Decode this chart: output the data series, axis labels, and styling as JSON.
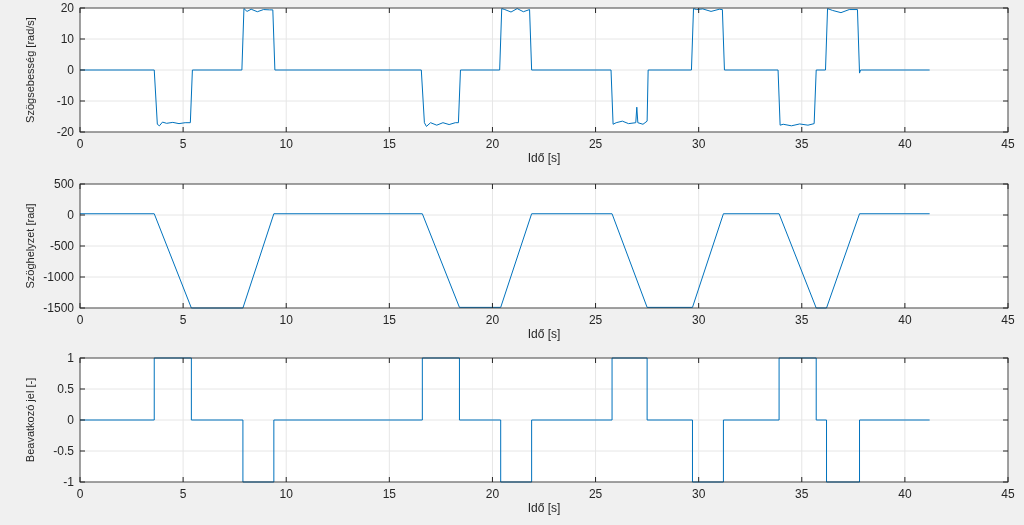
{
  "chart_data": [
    {
      "type": "line",
      "xlabel": "Idő [s]",
      "ylabel": "Szögsebesség [rad/s]",
      "xlim": [
        0,
        45
      ],
      "xticks": [
        0,
        5,
        10,
        15,
        20,
        25,
        30,
        35,
        40,
        45
      ],
      "ylim": [
        -20,
        20
      ],
      "yticks": [
        -20,
        -10,
        0,
        10,
        20
      ],
      "grid": true,
      "series": [
        {
          "color": "#0072bd",
          "x": [
            0,
            3.6,
            3.75,
            3.85,
            4.0,
            4.2,
            4.5,
            4.8,
            5.1,
            5.35,
            5.45,
            7.85,
            7.95,
            8.1,
            8.3,
            8.6,
            8.9,
            9.2,
            9.35,
            9.45,
            16.55,
            16.7,
            16.8,
            17.0,
            17.3,
            17.6,
            17.9,
            18.2,
            18.35,
            18.45,
            20.35,
            20.45,
            20.6,
            20.9,
            21.2,
            21.5,
            21.8,
            21.9,
            25.75,
            25.85,
            26.0,
            26.3,
            26.6,
            26.95,
            27.0,
            27.05,
            27.3,
            27.5,
            27.55,
            29.65,
            29.75,
            29.9,
            30.2,
            30.6,
            31.0,
            31.15,
            31.25,
            33.85,
            33.95,
            34.1,
            34.5,
            34.9,
            35.3,
            35.6,
            35.7,
            36.15,
            36.25,
            36.5,
            36.9,
            37.3,
            37.7,
            37.8,
            37.85,
            41.2
          ],
          "values": [
            0,
            0,
            -17.5,
            -18,
            -16.8,
            -17.2,
            -16.9,
            -17.3,
            -17,
            -17,
            0,
            0,
            19.8,
            18.9,
            19.6,
            18.8,
            19.5,
            19.4,
            19.4,
            0,
            0,
            -17,
            -18.2,
            -17,
            -17.8,
            -17,
            -17.6,
            -17,
            -17,
            0,
            0,
            19.8,
            19.5,
            18.7,
            19.8,
            18.8,
            19.5,
            0,
            0,
            -17.5,
            -17,
            -16.5,
            -17.3,
            -17,
            -12,
            -17,
            -17.5,
            -16.5,
            0,
            0,
            19.8,
            19.5,
            19.7,
            18.9,
            19.6,
            19.5,
            0,
            0,
            -17.8,
            -17.5,
            -18,
            -17.4,
            -17.8,
            -17.3,
            0,
            0,
            19.8,
            19.2,
            18.5,
            19.5,
            19.5,
            -1,
            0,
            0
          ]
        }
      ]
    },
    {
      "type": "line",
      "xlabel": "Idő [s]",
      "ylabel": "Szöghelyzet [rad]",
      "xlim": [
        0,
        45
      ],
      "xticks": [
        0,
        5,
        10,
        15,
        20,
        25,
        30,
        35,
        40,
        45
      ],
      "ylim": [
        -1500,
        500
      ],
      "yticks": [
        -1500,
        -1000,
        -500,
        0,
        500
      ],
      "grid": true,
      "series": [
        {
          "color": "#0072bd",
          "x": [
            0,
            3.6,
            5.4,
            7.9,
            9.4,
            16.6,
            18.4,
            20.4,
            21.9,
            25.8,
            27.5,
            29.7,
            31.2,
            33.9,
            35.7,
            36.2,
            37.8,
            41.2
          ],
          "values": [
            20,
            20,
            -1500,
            -1500,
            20,
            20,
            -1490,
            -1490,
            20,
            20,
            -1490,
            -1490,
            20,
            20,
            -1500,
            -1500,
            20,
            20
          ]
        }
      ]
    },
    {
      "type": "line",
      "xlabel": "Idő [s]",
      "ylabel": "Beavatkozó jel [-]",
      "xlim": [
        0,
        45
      ],
      "xticks": [
        0,
        5,
        10,
        15,
        20,
        25,
        30,
        35,
        40,
        45
      ],
      "ylim": [
        -1,
        1
      ],
      "yticks": [
        -1,
        -0.5,
        0,
        0.5,
        1
      ],
      "grid": true,
      "series": [
        {
          "color": "#0072bd",
          "x": [
            0,
            3.6,
            3.6,
            5.4,
            5.4,
            7.9,
            7.9,
            9.4,
            9.4,
            16.6,
            16.6,
            18.4,
            18.4,
            20.4,
            20.4,
            21.9,
            21.9,
            25.8,
            25.8,
            27.5,
            27.5,
            29.7,
            29.7,
            31.2,
            31.2,
            33.9,
            33.9,
            35.7,
            35.7,
            36.2,
            36.2,
            37.8,
            37.8,
            41.2
          ],
          "values": [
            0,
            0,
            1,
            1,
            0,
            0,
            -1,
            -1,
            0,
            0,
            1,
            1,
            0,
            0,
            -1,
            -1,
            0,
            0,
            1,
            1,
            0,
            0,
            -1,
            -1,
            0,
            0,
            1,
            1,
            0,
            0,
            -1,
            -1,
            0,
            0
          ]
        }
      ]
    }
  ]
}
